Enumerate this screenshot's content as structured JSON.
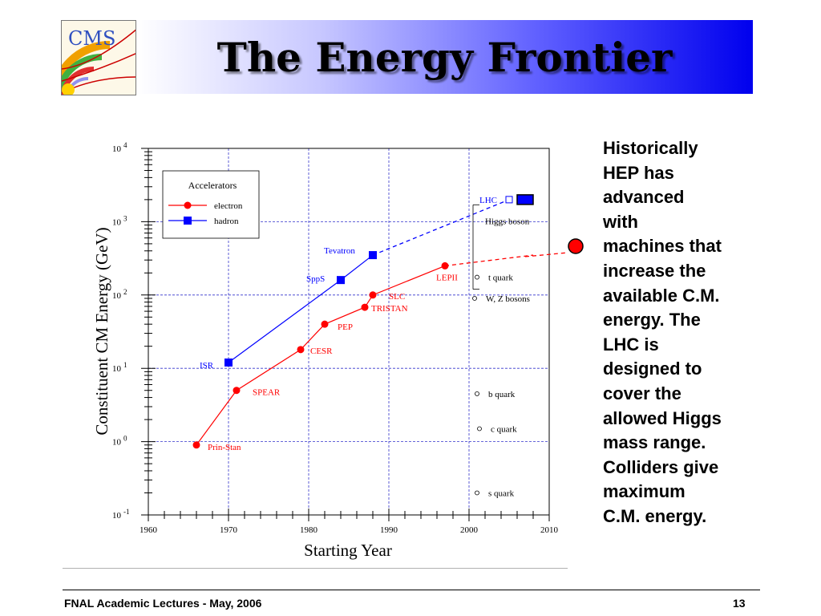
{
  "slide": {
    "title": "The Energy Frontier",
    "logo_text": "CMS",
    "side_text": "Historically\nHEP has\nadvanced\nwith\nmachines that\nincrease the\navailable C.M.\nenergy. The\nLHC is\ndesigned to\ncover the\nallowed Higgs\nmass range.\nColliders give\nmaximum\nC.M. energy.",
    "footer_left": "FNAL Academic Lectures - May, 2006",
    "footer_right": "13"
  },
  "colors": {
    "electron": "#ff0000",
    "hadron": "#0000ff",
    "grid": "#3333cc",
    "banner_end": "#0000ee"
  },
  "chart_data": {
    "type": "line",
    "xlabel": "Starting Year",
    "ylabel": "Constituent CM Energy (GeV)",
    "xlim": [
      1960,
      2010
    ],
    "ylim_log10": [
      -1,
      4
    ],
    "yscale": "log",
    "xticks": [
      1960,
      1970,
      1980,
      1990,
      2000,
      2010
    ],
    "yticks": [
      {
        "base": "10",
        "exp": "-1"
      },
      {
        "base": "10",
        "exp": "0"
      },
      {
        "base": "10",
        "exp": "1"
      },
      {
        "base": "10",
        "exp": "2"
      },
      {
        "base": "10",
        "exp": "3"
      },
      {
        "base": "10",
        "exp": "4"
      }
    ],
    "legend": {
      "title": "Accelerators",
      "entries": [
        "electron",
        "hadron"
      ],
      "placement": "top-left"
    },
    "series": [
      {
        "name": "electron",
        "marker": "circle",
        "points": [
          {
            "label": "Prin-Stan",
            "x": 1966,
            "y": 0.9
          },
          {
            "label": "SPEAR",
            "x": 1971,
            "y": 5
          },
          {
            "label": "CESR",
            "x": 1979,
            "y": 18
          },
          {
            "label": "PEP",
            "x": 1982,
            "y": 40
          },
          {
            "label": "TRISTAN",
            "x": 1987,
            "y": 68
          },
          {
            "label": "SLC",
            "x": 1988,
            "y": 100
          },
          {
            "label": "LEPII",
            "x": 1997,
            "y": 250
          }
        ],
        "projection": {
          "x": 2008,
          "y": 350
        }
      },
      {
        "name": "hadron",
        "marker": "square",
        "points": [
          {
            "label": "ISR",
            "x": 1970,
            "y": 12
          },
          {
            "label": "SppS",
            "x": 1984,
            "y": 160
          },
          {
            "label": "Tevatron",
            "x": 1988,
            "y": 350
          }
        ],
        "projection": {
          "x": 2005,
          "y": 2000
        },
        "future_points": [
          {
            "label": "LHC",
            "x": 2005,
            "y": 2000,
            "style": "open-square"
          },
          {
            "x": 2007,
            "y": 2000,
            "style": "filled-box"
          }
        ]
      }
    ],
    "annotations": [
      {
        "text": "Higgs boson",
        "x": 2001,
        "y": 1600,
        "style": "range-bar",
        "y_from": 120,
        "y_to": 1700
      },
      {
        "text": "t quark",
        "x": 2001,
        "y": 175,
        "marker": "open-circle"
      },
      {
        "text": "W, Z bosons",
        "x": 2000.7,
        "y": 90,
        "marker": "open-circle"
      },
      {
        "text": "b quark",
        "x": 2001,
        "y": 4.5,
        "marker": "open-circle"
      },
      {
        "text": "c quark",
        "x": 2001.3,
        "y": 1.5,
        "marker": "open-circle"
      },
      {
        "text": "s quark",
        "x": 2001,
        "y": 0.2,
        "marker": "open-circle"
      }
    ]
  }
}
